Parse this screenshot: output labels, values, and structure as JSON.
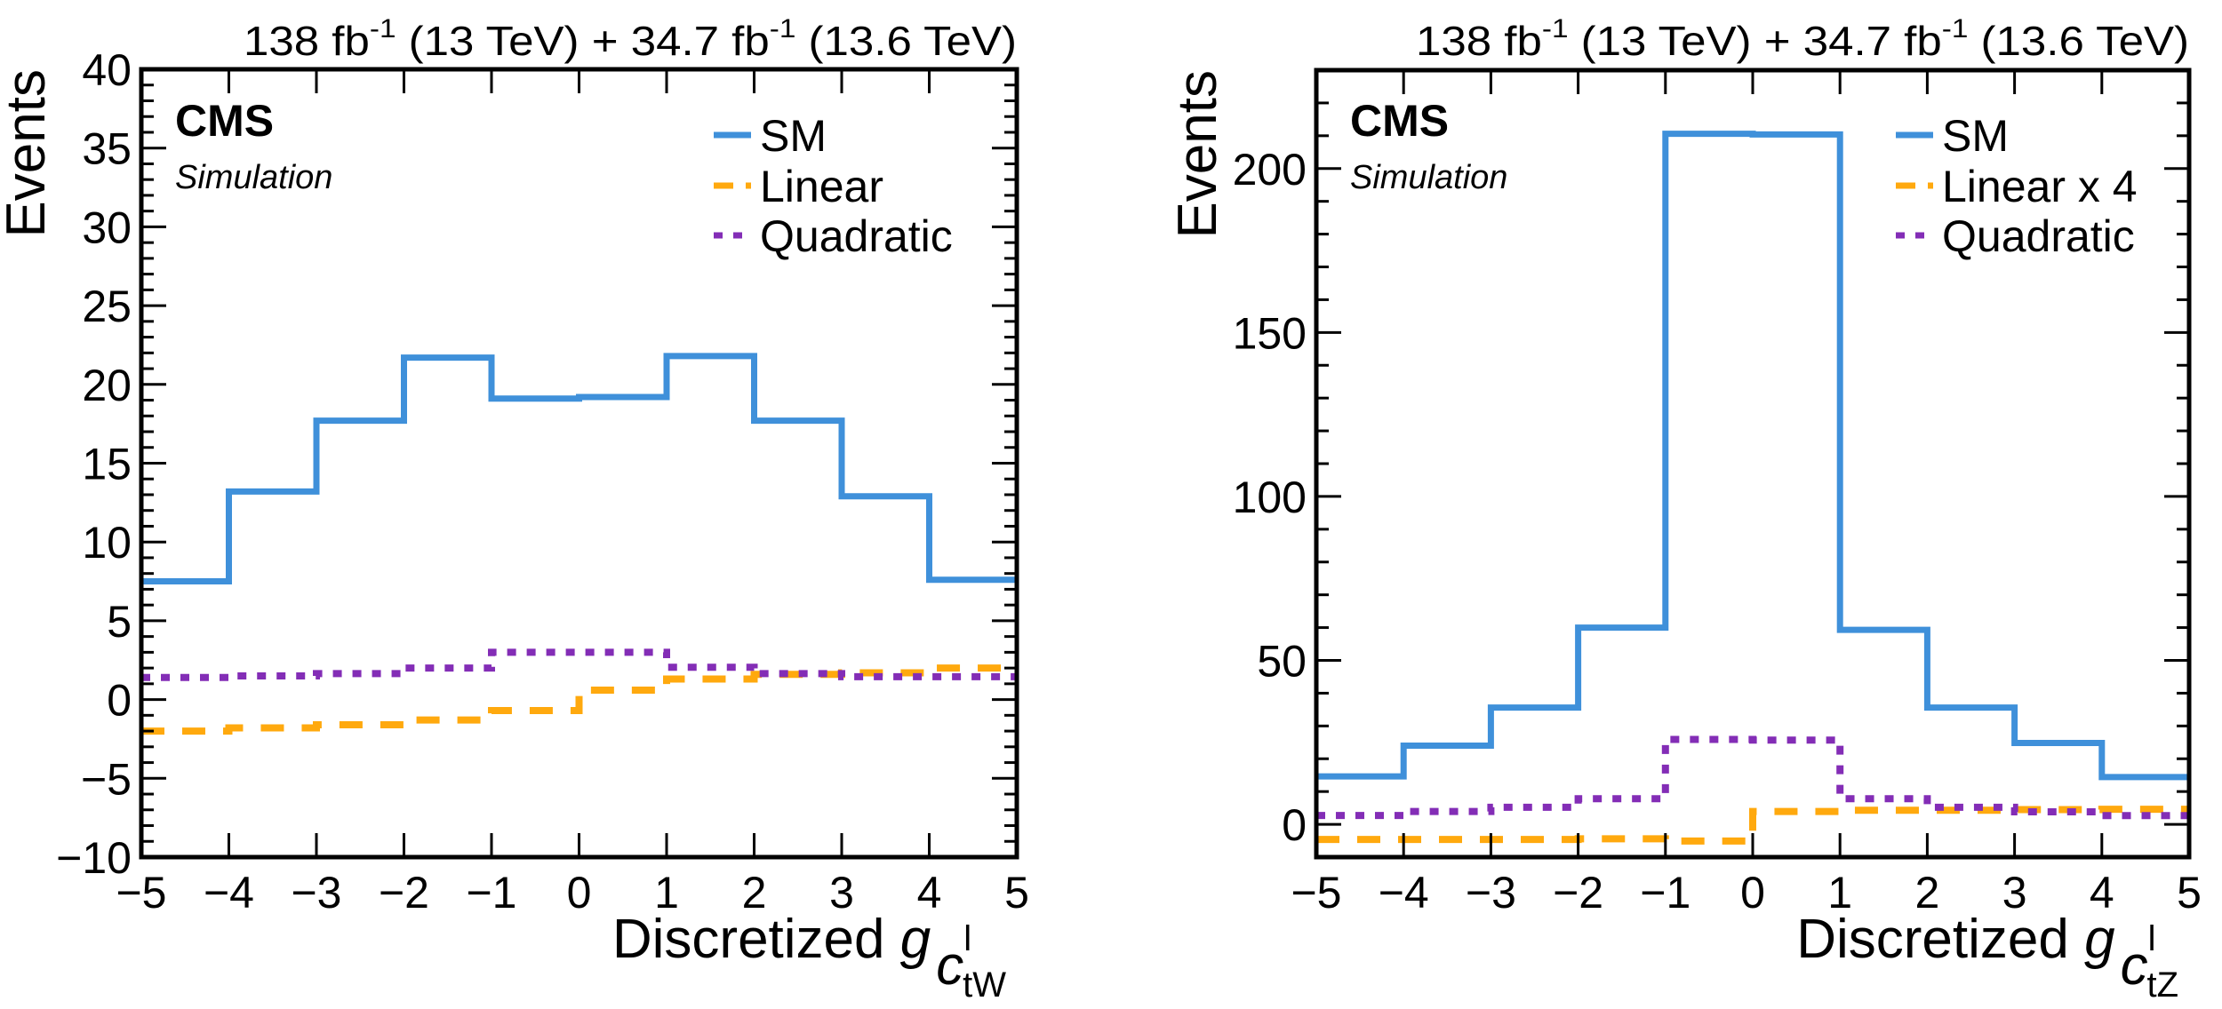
{
  "chart_data": [
    {
      "type": "step",
      "title": "138 fb^-1 (13 TeV) + 34.7 fb^-1 (13.6 TeV)",
      "lumi": {
        "part1": "138 fb",
        "sup1": "-1",
        "part2": " (13 TeV) + 34.7 fb",
        "sup2": "-1",
        "part3": " (13.6 TeV)"
      },
      "experiment": "CMS",
      "extra_text": "Simulation",
      "xlabel": {
        "main": "Discretized ",
        "g": "g",
        "c": "c",
        "sup": "l",
        "sub": "tW"
      },
      "ylabel": "Events",
      "xlim": [
        -5,
        5
      ],
      "ylim": [
        -10,
        40
      ],
      "x_major_ticks": [
        -5,
        -4,
        -3,
        -2,
        -1,
        0,
        1,
        2,
        3,
        4,
        5
      ],
      "x_tick_labels": [
        "−5",
        "−4",
        "−3",
        "−2",
        "−1",
        "0",
        "1",
        "2",
        "3",
        "4",
        "5"
      ],
      "y_major_ticks": [
        -10,
        -5,
        0,
        5,
        10,
        15,
        20,
        25,
        30,
        35,
        40
      ],
      "y_tick_labels": [
        "−10",
        "−5",
        "0",
        "5",
        "10",
        "15",
        "20",
        "25",
        "30",
        "35",
        "40"
      ],
      "y_minor_step": 1,
      "bin_edges": [
        -5,
        -4,
        -3,
        -2,
        -1,
        0,
        1,
        2,
        3,
        4,
        5
      ],
      "legend_position": "top-right",
      "series": [
        {
          "name": "SM",
          "color": "#3f90da",
          "style": "solid",
          "values": [
            7.5,
            13.2,
            17.7,
            21.7,
            19.1,
            19.2,
            21.8,
            17.7,
            12.9,
            7.6
          ]
        },
        {
          "name": "Linear",
          "color": "#ffa90e",
          "style": "dashed",
          "values": [
            -2.0,
            -1.8,
            -1.6,
            -1.3,
            -0.7,
            0.6,
            1.3,
            1.6,
            1.7,
            2.0
          ]
        },
        {
          "name": "Quadratic",
          "color": "#832db6",
          "style": "dotted",
          "values": [
            1.4,
            1.5,
            1.65,
            2.0,
            3.0,
            3.0,
            2.05,
            1.65,
            1.45,
            1.45
          ]
        }
      ]
    },
    {
      "type": "step",
      "title": "138 fb^-1 (13 TeV) + 34.7 fb^-1 (13.6 TeV)",
      "lumi": {
        "part1": "138 fb",
        "sup1": "-1",
        "part2": " (13 TeV) + 34.7 fb",
        "sup2": "-1",
        "part3": " (13.6 TeV)"
      },
      "experiment": "CMS",
      "extra_text": "Simulation",
      "xlabel": {
        "main": "Discretized ",
        "g": "g",
        "c": "c",
        "sup": "l",
        "sub": "tZ"
      },
      "ylabel": "Events",
      "xlim": [
        -5,
        5
      ],
      "ylim": [
        -10,
        230
      ],
      "x_major_ticks": [
        -5,
        -4,
        -3,
        -2,
        -1,
        0,
        1,
        2,
        3,
        4,
        5
      ],
      "x_tick_labels": [
        "−5",
        "−4",
        "−3",
        "−2",
        "−1",
        "0",
        "1",
        "2",
        "3",
        "4",
        "5"
      ],
      "y_major_ticks": [
        0,
        50,
        100,
        150,
        200
      ],
      "y_tick_labels": [
        "0",
        "50",
        "100",
        "150",
        "200"
      ],
      "y_minor_step": 10,
      "bin_edges": [
        -5,
        -4,
        -3,
        -2,
        -1,
        0,
        1,
        2,
        3,
        4,
        5
      ],
      "legend_position": "top-right",
      "series": [
        {
          "name": "SM",
          "color": "#3f90da",
          "style": "solid",
          "values": [
            14.6,
            24.0,
            35.6,
            60.0,
            210.6,
            210.4,
            59.3,
            35.6,
            24.8,
            14.4
          ]
        },
        {
          "name": "Linear x 4",
          "color": "#ffa90e",
          "style": "dashed",
          "values": [
            -4.6,
            -4.6,
            -4.6,
            -4.4,
            -5.1,
            3.9,
            4.3,
            4.3,
            4.5,
            4.6
          ]
        },
        {
          "name": "Quadratic",
          "color": "#832db6",
          "style": "dotted",
          "values": [
            2.7,
            3.9,
            5.2,
            7.8,
            25.9,
            25.7,
            7.8,
            5.2,
            3.8,
            2.65
          ]
        }
      ]
    }
  ]
}
